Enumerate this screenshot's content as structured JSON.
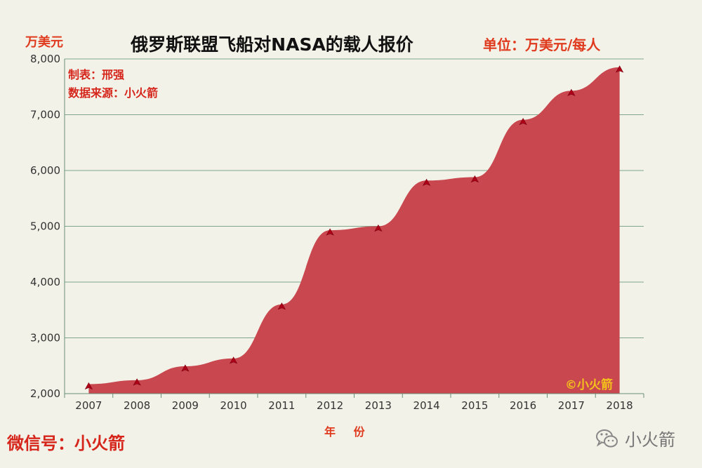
{
  "title": "俄罗斯联盟飞船对NASA的载人报价",
  "unit_left": "万美元",
  "unit_right": "单位：万美元/每人",
  "maker": "制表：邢强",
  "source": "数据来源：小火箭",
  "copyright": "©小火箭",
  "wechat": "微信号：小火箭",
  "brand_name": "小火箭",
  "brand_icon": "wechat-icon",
  "colors": {
    "area_fill": "#c9474f",
    "marker": "#b00018",
    "grid": "#7fa58c",
    "background": "#f2f2e8",
    "accent_text": "#e03a1e"
  },
  "chart_data": {
    "type": "area",
    "title": "俄罗斯联盟飞船对NASA的载人报价",
    "xlabel": "年 份",
    "ylabel": "万美元",
    "x": [
      "2007",
      "2008",
      "2009",
      "2010",
      "2011",
      "2012",
      "2013",
      "2014",
      "2015",
      "2016",
      "2017",
      "2018"
    ],
    "series": [
      {
        "values": [
          2170,
          2240,
          2490,
          2630,
          3600,
          4930,
          5000,
          5820,
          5880,
          6910,
          7430,
          7850
        ]
      }
    ],
    "ylim": [
      2000,
      8000
    ],
    "yticks": [
      2000,
      3000,
      4000,
      5000,
      6000,
      7000,
      8000
    ],
    "ytick_labels": [
      "2,000",
      "3,000",
      "4,000",
      "5,000",
      "6,000",
      "7,000",
      "8,000"
    ],
    "grid": true,
    "smooth": true,
    "marker": "triangle"
  }
}
